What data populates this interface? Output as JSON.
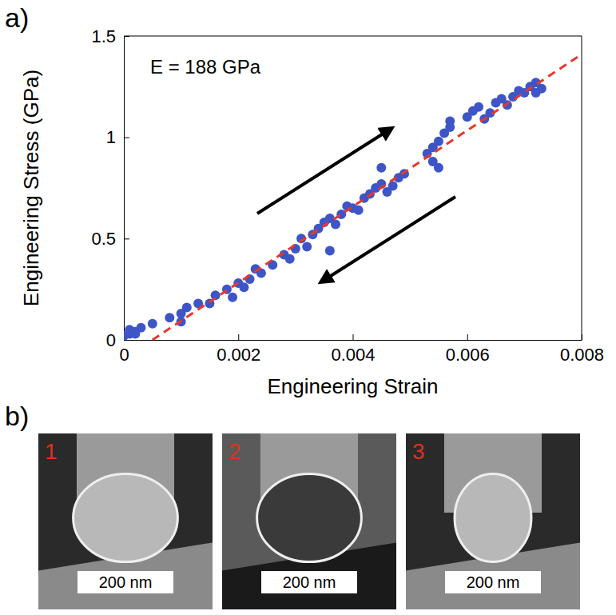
{
  "chart_data": {
    "type": "scatter",
    "panel_label": "a)",
    "x_label": "Engineering Strain",
    "y_label": "Engineering Stress (GPa)",
    "annotations": [
      "E = 188 GPa"
    ],
    "xlim": [
      0,
      0.008
    ],
    "ylim": [
      0,
      1.5
    ],
    "xticks": [
      0,
      0.002,
      0.004,
      0.006,
      0.008
    ],
    "yticks": [
      0,
      0.5,
      1,
      1.5
    ],
    "grid": false,
    "series": [
      {
        "type": "scatter",
        "color": "#3d55c6",
        "marker": "circle",
        "x": [
          0,
          0.0001,
          0.0002,
          0.0001,
          0.0003,
          0.0002,
          0.0005,
          0.0008,
          0.001,
          0.001,
          0.0011,
          0.0013,
          0.0015,
          0.0016,
          0.0018,
          0.0019,
          0.002,
          0.0021,
          0.0022,
          0.0023,
          0.0024,
          0.0026,
          0.0028,
          0.0029,
          0.003,
          0.0031,
          0.0032,
          0.0033,
          0.0034,
          0.0035,
          0.0036,
          0.0036,
          0.0037,
          0.0038,
          0.0039,
          0.004,
          0.0041,
          0.0042,
          0.0043,
          0.0044,
          0.0045,
          0.0045,
          0.0046,
          0.0047,
          0.0048,
          0.0049,
          0.0053,
          0.0054,
          0.0054,
          0.0055,
          0.0055,
          0.0056,
          0.0057,
          0.0057,
          0.006,
          0.0061,
          0.0062,
          0.0063,
          0.0064,
          0.0065,
          0.0066,
          0.0067,
          0.0068,
          0.0069,
          0.007,
          0.0071,
          0.0072,
          0.0072,
          0.0073
        ],
        "values": [
          0.02,
          0.03,
          0.04,
          0.05,
          0.06,
          0.03,
          0.08,
          0.11,
          0.13,
          0.09,
          0.16,
          0.18,
          0.18,
          0.22,
          0.25,
          0.21,
          0.28,
          0.26,
          0.3,
          0.35,
          0.33,
          0.37,
          0.42,
          0.4,
          0.45,
          0.5,
          0.46,
          0.52,
          0.55,
          0.58,
          0.6,
          0.44,
          0.57,
          0.62,
          0.66,
          0.65,
          0.64,
          0.7,
          0.72,
          0.75,
          0.85,
          0.77,
          0.73,
          0.76,
          0.8,
          0.82,
          0.92,
          0.95,
          0.88,
          0.85,
          0.98,
          1.02,
          1.05,
          1.08,
          1.1,
          1.13,
          1.15,
          1.09,
          1.12,
          1.17,
          1.19,
          1.16,
          1.2,
          1.23,
          1.22,
          1.25,
          1.27,
          1.22,
          1.24
        ]
      },
      {
        "type": "line",
        "color": "#e8372c",
        "line_style": "dashed",
        "x": [
          0.0005,
          0.008
        ],
        "values": [
          0,
          1.41
        ]
      }
    ]
  },
  "sem_images": {
    "panel_label": "b)",
    "images": [
      {
        "label": "1",
        "scale_bar": "200 nm"
      },
      {
        "label": "2",
        "scale_bar": "200 nm"
      },
      {
        "label": "3",
        "scale_bar": "200 nm"
      }
    ]
  }
}
